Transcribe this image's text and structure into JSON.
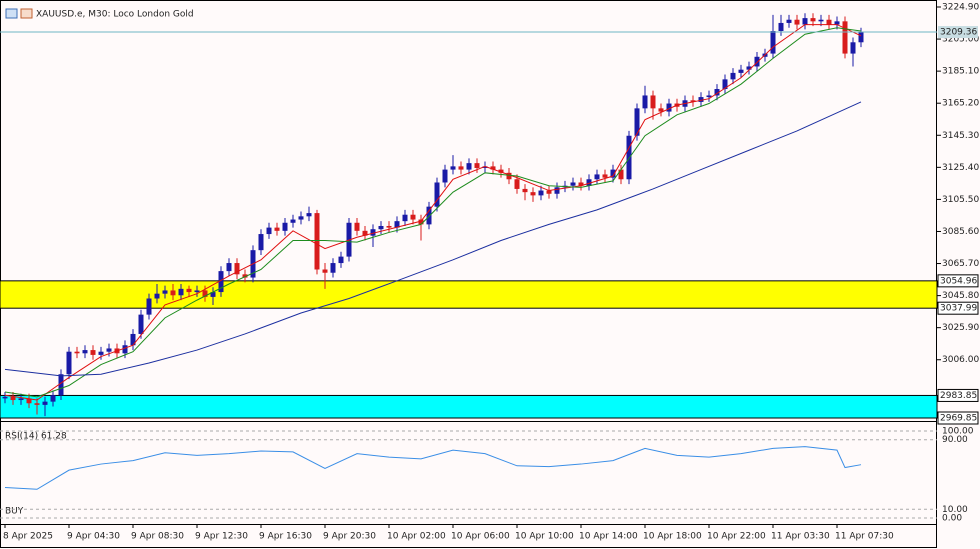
{
  "chart_data": [
    {
      "type": "candlestick",
      "title": "XAUUSD.e, M30:  Loco London Gold",
      "categories": [
        "8 Apr 2025",
        null,
        null,
        null,
        null,
        null,
        null,
        null,
        "9 Apr 04:30",
        null,
        null,
        null,
        null,
        null,
        null,
        null,
        "9 Apr 08:30",
        null,
        null,
        null,
        null,
        null,
        null,
        null,
        "9 Apr 12:30",
        null,
        null,
        null,
        null,
        null,
        null,
        null,
        "9 Apr 16:30",
        null,
        null,
        null,
        null,
        null,
        null,
        null,
        "9 Apr 20:30",
        null,
        null,
        null,
        null,
        null,
        null,
        null,
        "10 Apr 02:00",
        null,
        null,
        null,
        null,
        null,
        null,
        null,
        "10 Apr 06:00",
        null,
        null,
        null,
        null,
        null,
        null,
        null,
        "10 Apr 10:00",
        null,
        null,
        null,
        null,
        null,
        null,
        null,
        "10 Apr 14:00",
        null,
        null,
        null,
        null,
        null,
        null,
        null,
        "10 Apr 18:00",
        null,
        null,
        null,
        null,
        null,
        null,
        null,
        "10 Apr 22:00",
        null,
        null,
        null,
        null,
        null,
        null,
        null,
        "11 Apr 03:30",
        null,
        null,
        null,
        null,
        null,
        null,
        null,
        "11 Apr 07:30",
        null,
        null,
        null
      ],
      "open": [
        2982,
        2983,
        2981,
        2982,
        2979,
        2978,
        2980,
        2984,
        2997,
        3011,
        3010,
        3012,
        3009,
        3011,
        3013,
        3010,
        3015,
        3022,
        3034,
        3044,
        3047,
        3049,
        3046,
        3050,
        3048,
        3049,
        3045,
        3048,
        3061,
        3066,
        3059,
        3057,
        3074,
        3084,
        3088,
        3086,
        3091,
        3093,
        3095,
        3097,
        3062,
        3060,
        3066,
        3070,
        3091,
        3086,
        3083,
        3087,
        3089,
        3088,
        3092,
        3096,
        3093,
        3090,
        3101,
        3116,
        3124,
        3126,
        3124,
        3128,
        3125,
        3126,
        3124,
        3122,
        3118,
        3112,
        3110,
        3108,
        3111,
        3109,
        3113,
        3114,
        3116,
        3114,
        3118,
        3121,
        3119,
        3124,
        3118,
        3145,
        3162,
        3170,
        3162,
        3160,
        3165,
        3163,
        3167,
        3166,
        3169,
        3170,
        3174,
        3180,
        3184,
        3186,
        3188,
        3194,
        3196,
        3210,
        3215,
        3217,
        3214,
        3218,
        3216,
        3217,
        3214,
        3216,
        3196,
        3203
      ],
      "high": [
        2986,
        2986,
        2985,
        2985,
        2982,
        2983,
        2987,
        3000,
        3014,
        3014,
        3015,
        3015,
        3014,
        3016,
        3016,
        3018,
        3025,
        3037,
        3047,
        3053,
        3052,
        3053,
        3053,
        3052,
        3052,
        3052,
        3051,
        3064,
        3069,
        3069,
        3062,
        3077,
        3087,
        3091,
        3091,
        3094,
        3096,
        3098,
        3101,
        3099,
        3066,
        3069,
        3073,
        3094,
        3094,
        3089,
        3090,
        3092,
        3092,
        3095,
        3099,
        3099,
        3096,
        3104,
        3119,
        3127,
        3133,
        3129,
        3131,
        3131,
        3129,
        3129,
        3127,
        3125,
        3121,
        3115,
        3113,
        3114,
        3114,
        3116,
        3117,
        3119,
        3119,
        3121,
        3124,
        3124,
        3127,
        3127,
        3148,
        3165,
        3176,
        3173,
        3165,
        3168,
        3168,
        3170,
        3170,
        3172,
        3173,
        3177,
        3183,
        3187,
        3189,
        3191,
        3197,
        3199,
        3220,
        3220,
        3220,
        3220,
        3221,
        3221,
        3220,
        3220,
        3219,
        3219,
        3206,
        3212
      ],
      "low": [
        2979,
        2978,
        2978,
        2976,
        2972,
        2971,
        2977,
        2981,
        2994,
        3007,
        3007,
        3006,
        3006,
        3008,
        3007,
        3007,
        3012,
        3019,
        3031,
        3041,
        3044,
        3043,
        3043,
        3045,
        3045,
        3042,
        3040,
        3045,
        3058,
        3056,
        3054,
        3054,
        3071,
        3081,
        3083,
        3083,
        3088,
        3090,
        3092,
        3059,
        3050,
        3057,
        3063,
        3067,
        3083,
        3080,
        3076,
        3084,
        3085,
        3085,
        3089,
        3090,
        3080,
        3087,
        3098,
        3113,
        3121,
        3121,
        3121,
        3122,
        3122,
        3121,
        3119,
        3115,
        3109,
        3105,
        3104,
        3105,
        3106,
        3106,
        3110,
        3111,
        3111,
        3111,
        3115,
        3116,
        3116,
        3115,
        3115,
        3142,
        3159,
        3155,
        3157,
        3157,
        3160,
        3160,
        3163,
        3163,
        3166,
        3167,
        3171,
        3177,
        3181,
        3183,
        3185,
        3191,
        3193,
        3207,
        3212,
        3211,
        3211,
        3213,
        3213,
        3211,
        3211,
        3193,
        3188,
        3200
      ],
      "close": [
        2983,
        2981,
        2982,
        2979,
        2978,
        2980,
        2984,
        2997,
        3011,
        3010,
        3012,
        3009,
        3011,
        3013,
        3010,
        3015,
        3022,
        3034,
        3044,
        3047,
        3049,
        3046,
        3050,
        3048,
        3049,
        3045,
        3048,
        3061,
        3066,
        3059,
        3057,
        3074,
        3084,
        3088,
        3086,
        3091,
        3093,
        3095,
        3097,
        3062,
        3060,
        3066,
        3070,
        3091,
        3086,
        3083,
        3087,
        3089,
        3088,
        3092,
        3096,
        3093,
        3090,
        3101,
        3116,
        3124,
        3126,
        3124,
        3128,
        3125,
        3126,
        3124,
        3122,
        3118,
        3112,
        3110,
        3108,
        3111,
        3109,
        3113,
        3114,
        3116,
        3114,
        3118,
        3121,
        3119,
        3124,
        3118,
        3145,
        3162,
        3170,
        3162,
        3160,
        3165,
        3163,
        3167,
        3166,
        3169,
        3170,
        3174,
        3180,
        3184,
        3186,
        3188,
        3194,
        3196,
        3210,
        3215,
        3217,
        3214,
        3218,
        3216,
        3217,
        3214,
        3216,
        3196,
        3203,
        3209.36
      ],
      "up_color": "#1a1aa6",
      "down_color": "#d81c1c",
      "overlays": [
        {
          "color": "#e01010",
          "x": [
            0,
            4,
            8,
            12,
            16,
            20,
            24,
            28,
            32,
            36,
            40,
            44,
            48,
            52,
            56,
            60,
            64,
            68,
            72,
            76,
            80,
            84,
            88,
            92,
            96,
            100,
            104,
            107
          ],
          "values": [
            2984,
            2981,
            2995,
            3008,
            3015,
            3040,
            3047,
            3058,
            3068,
            3086,
            3075,
            3082,
            3087,
            3092,
            3118,
            3126,
            3119,
            3111,
            3114,
            3120,
            3155,
            3164,
            3168,
            3181,
            3200,
            3214,
            3214,
            3207
          ]
        },
        {
          "color": "#1e8c1e",
          "x": [
            0,
            4,
            8,
            12,
            16,
            20,
            24,
            28,
            32,
            36,
            40,
            44,
            48,
            52,
            56,
            60,
            64,
            68,
            72,
            76,
            80,
            84,
            88,
            92,
            96,
            100,
            104,
            107
          ],
          "values": [
            2986,
            2983,
            2990,
            3003,
            3011,
            3032,
            3043,
            3053,
            3062,
            3080,
            3080,
            3079,
            3085,
            3090,
            3110,
            3122,
            3120,
            3114,
            3113,
            3117,
            3145,
            3158,
            3165,
            3177,
            3193,
            3208,
            3212,
            3210
          ]
        },
        {
          "color": "#1c2fa0",
          "x": [
            0,
            7,
            12,
            18,
            24,
            30,
            37,
            43,
            49,
            56,
            62,
            68,
            74,
            81,
            87,
            93,
            99,
            103,
            107
          ],
          "values": [
            3000,
            2996,
            2997,
            3004,
            3012,
            3022,
            3035,
            3044,
            3055,
            3068,
            3080,
            3090,
            3099,
            3112,
            3124,
            3136,
            3148,
            3157,
            3166
          ]
        }
      ],
      "zones": [
        {
          "low": 3037.99,
          "high": 3054.96,
          "color": "#ffff00"
        },
        {
          "low": 2969.85,
          "high": 2983.85,
          "color": "#00ffff"
        }
      ],
      "price_line": 3209.36,
      "price_line_color": "#6fb7c4",
      "ylim": [
        2969.85,
        3226.14
      ],
      "yticks": [
        {
          "value": 3224.9,
          "label": "3224.90"
        },
        {
          "value": 3205,
          "label": "3205.00"
        },
        {
          "value": 3185.1,
          "label": "3185.10"
        },
        {
          "value": 3165.2,
          "label": "3165.20"
        },
        {
          "value": 3145.3,
          "label": "3145.30"
        },
        {
          "value": 3125.4,
          "label": "3125.40"
        },
        {
          "value": 3105.5,
          "label": "3105.50"
        },
        {
          "value": 3085.6,
          "label": "3085.60"
        },
        {
          "value": 3065.7,
          "label": "3065.70"
        },
        {
          "value": 3045.8,
          "label": "3045.80"
        },
        {
          "value": 3025.9,
          "label": "3025.90"
        },
        {
          "value": 3006,
          "label": "3006.00"
        }
      ]
    },
    {
      "type": "line",
      "title": "RSI(14) 61.28",
      "annotation": "BUY",
      "color": "#3a8ee6",
      "x": [
        0,
        4,
        8,
        12,
        16,
        20,
        24,
        28,
        32,
        36,
        40,
        44,
        48,
        52,
        56,
        60,
        64,
        68,
        72,
        76,
        80,
        84,
        88,
        92,
        96,
        100,
        104,
        105,
        107
      ],
      "values": [
        35,
        33,
        55,
        62,
        66,
        75,
        72,
        74,
        77,
        76,
        57,
        74,
        70,
        68,
        78,
        74,
        60,
        59,
        62,
        66,
        80,
        72,
        70,
        74,
        80,
        82,
        78,
        58,
        61.28
      ],
      "ylim": [
        0,
        100
      ],
      "yticks": [
        {
          "value": 100,
          "label": "100.00"
        },
        {
          "value": 90,
          "label": "90.00"
        },
        {
          "value": 10,
          "label": "10.00"
        },
        {
          "value": 0,
          "label": "0.00"
        }
      ]
    }
  ]
}
